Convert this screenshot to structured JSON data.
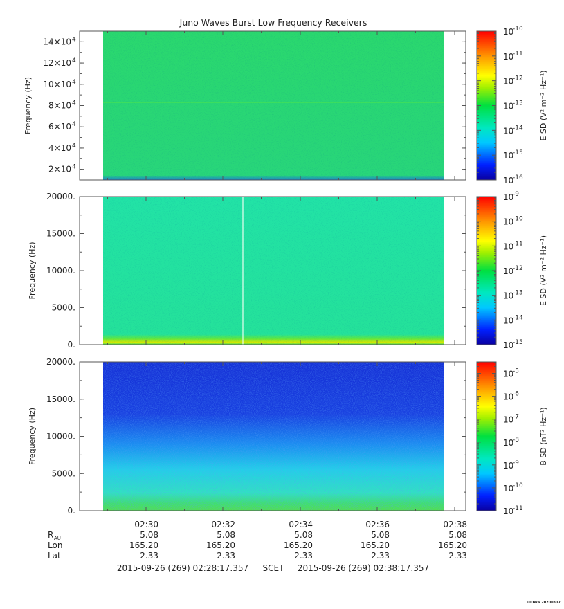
{
  "title": "Juno Waves Burst Low Frequency Receivers",
  "footer": {
    "left": "2015-09-26 (269) 02:28:17.357",
    "middle": "SCET",
    "right": "2015-09-26 (269) 02:38:17.357",
    "stamp": "UIOWA 20200307"
  },
  "ephemeris": {
    "rows": [
      {
        "label": "R",
        "sub": "AU",
        "values": [
          "5.08",
          "5.08",
          "5.08",
          "5.08",
          "5.08"
        ]
      },
      {
        "label": "Lon",
        "sub": "",
        "values": [
          "165.20",
          "165.20",
          "165.20",
          "165.20",
          "165.20"
        ]
      },
      {
        "label": "Lat",
        "sub": "",
        "values": [
          "2.33",
          "2.33",
          "2.33",
          "2.33",
          "2.33"
        ]
      }
    ]
  },
  "time_ticks": [
    "02:30",
    "02:32",
    "02:34",
    "02:36",
    "02:38"
  ],
  "chart_data": [
    {
      "type": "heatmap",
      "ylabel": "Frequency (Hz)",
      "yticks": [
        {
          "m": "2",
          "e": "4"
        },
        {
          "m": "4",
          "e": "4"
        },
        {
          "m": "6",
          "e": "4"
        },
        {
          "m": "8",
          "e": "4"
        },
        {
          "m": "10",
          "e": "4"
        },
        {
          "m": "12",
          "e": "4"
        },
        {
          "m": "14",
          "e": "4"
        }
      ],
      "ytick_values": [
        20000,
        40000,
        60000,
        80000,
        100000,
        120000,
        140000
      ],
      "ylim": [
        10000,
        150000
      ],
      "colorbar": {
        "label": "E SD (V² m⁻² Hz⁻¹)",
        "tick_exponents": [
          "-10",
          "-11",
          "-12",
          "-13",
          "-14",
          "-15",
          "-16"
        ],
        "range": [
          -16,
          -10
        ]
      },
      "fill": {
        "base": "#2cd872",
        "line_at": 83000,
        "line_color": "#4ee64a"
      }
    },
    {
      "type": "heatmap",
      "ylabel": "Frequency (Hz)",
      "yticks": [
        "0.",
        "5000.",
        "10000.",
        "15000.",
        "20000."
      ],
      "ytick_values": [
        0,
        5000,
        10000,
        15000,
        20000
      ],
      "ylim": [
        0,
        20000
      ],
      "colorbar": {
        "label": "E SD (V² m⁻² Hz⁻¹)",
        "tick_exponents": [
          "-9",
          "-10",
          "-11",
          "-12",
          "-13",
          "-14",
          "-15"
        ],
        "range": [
          -15,
          -9
        ]
      },
      "fill": {
        "base": "#22e6a4",
        "gap_time": "02:32:33"
      }
    },
    {
      "type": "heatmap",
      "ylabel": "Frequency (Hz)",
      "yticks": [
        "0.",
        "5000.",
        "10000.",
        "15000.",
        "20000."
      ],
      "ytick_values": [
        0,
        5000,
        10000,
        15000,
        20000
      ],
      "ylim": [
        0,
        20000
      ],
      "colorbar": {
        "label": "B SD (nT² Hz⁻¹)",
        "tick_exponents": [
          "-5",
          "-6",
          "-7",
          "-8",
          "-9",
          "-10",
          "-11"
        ],
        "range": [
          -11,
          -4.5
        ]
      },
      "fill": {
        "top": "#1633d8",
        "mid": "#1a9ef0",
        "low": "#2ee0e0",
        "bottom": "#3be26a"
      }
    }
  ]
}
